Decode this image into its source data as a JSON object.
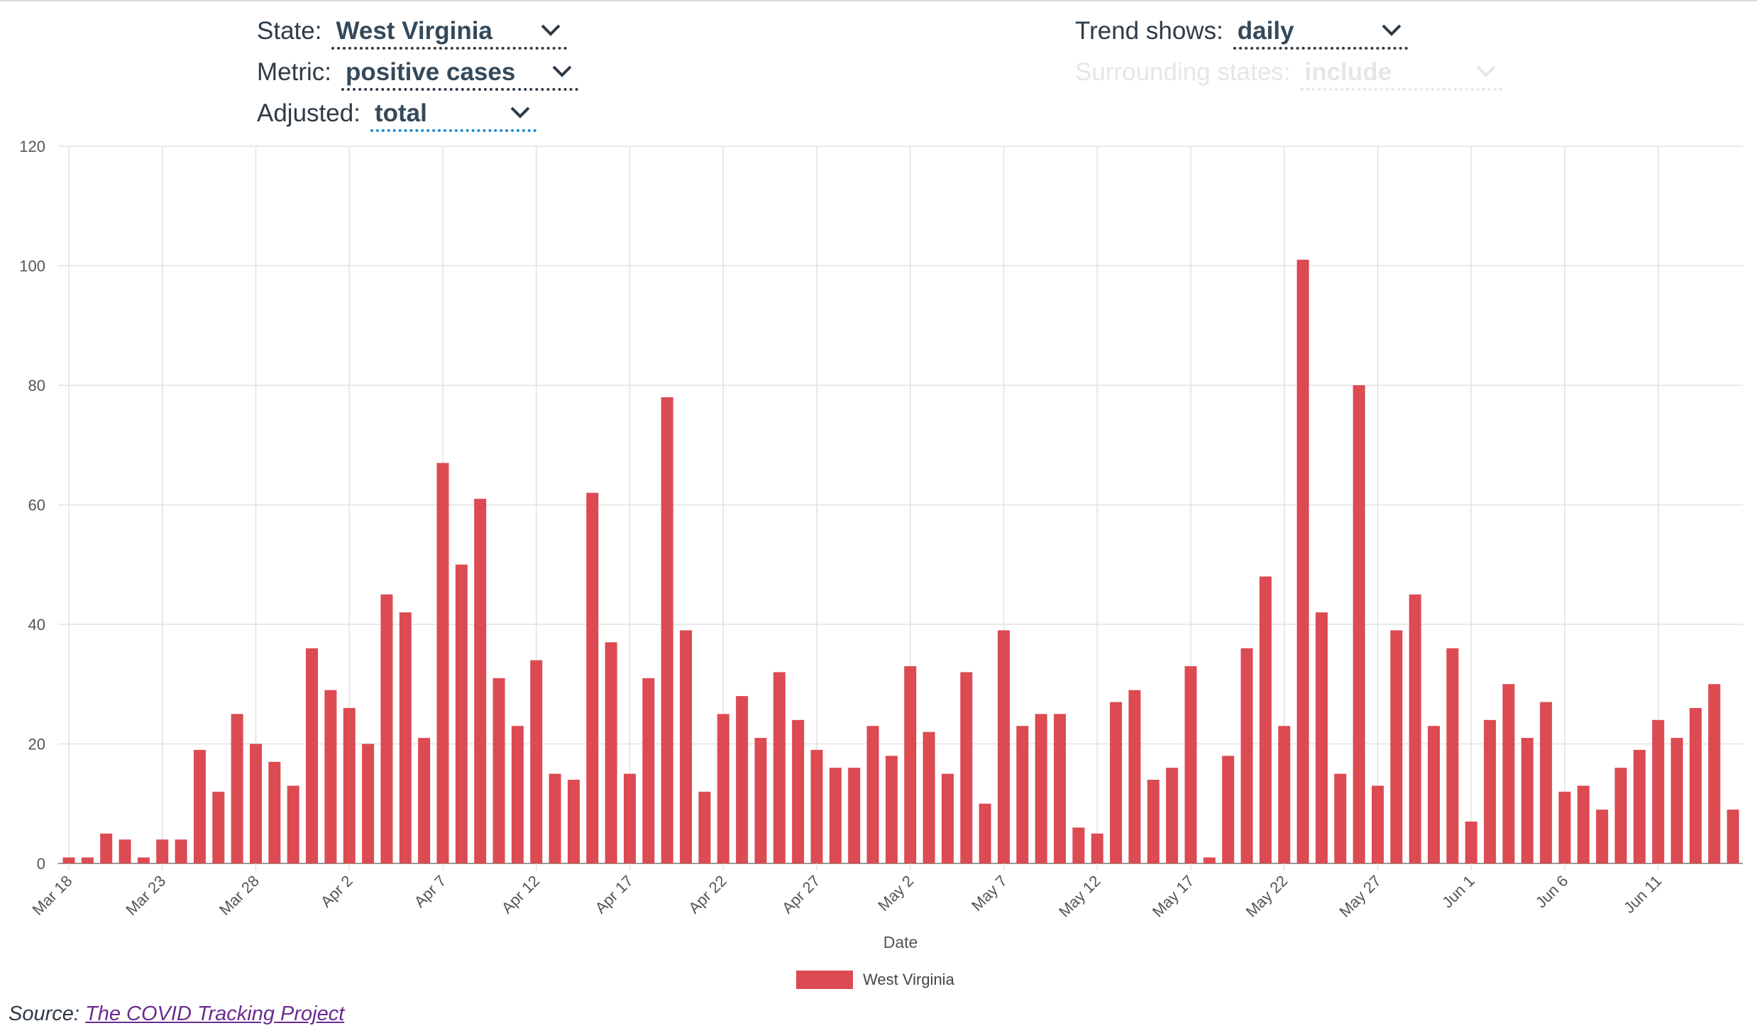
{
  "controls": {
    "state": {
      "label": "State:",
      "value": "West Virginia"
    },
    "metric": {
      "label": "Metric:",
      "value": "positive cases"
    },
    "adjusted": {
      "label": "Adjusted:",
      "value": "total"
    },
    "trend": {
      "label": "Trend shows:",
      "value": "daily"
    },
    "surrounding": {
      "label": "Surrounding states:",
      "value": "include",
      "disabled": true
    }
  },
  "source": {
    "prefix": "Source:",
    "link_text": "The COVID Tracking Project"
  },
  "colors": {
    "bar": "#dc4a52",
    "grid": "#e2e2e2",
    "text": "#2f3b47"
  },
  "chart_data": {
    "type": "bar",
    "xlabel": "Date",
    "ylabel": "",
    "ylim": [
      0,
      120
    ],
    "yticks": [
      0,
      20,
      40,
      60,
      80,
      100,
      120
    ],
    "grid": true,
    "legend_position": "bottom-center",
    "tick_labels": [
      "Mar 18",
      "Mar 23",
      "Mar 28",
      "Apr 2",
      "Apr 7",
      "Apr 12",
      "Apr 17",
      "Apr 22",
      "Apr 27",
      "May 2",
      "May 7",
      "May 12",
      "May 17",
      "May 22",
      "May 27",
      "Jun 1",
      "Jun 6",
      "Jun 11"
    ],
    "categories": [
      "Mar 18",
      "Mar 19",
      "Mar 20",
      "Mar 21",
      "Mar 22",
      "Mar 23",
      "Mar 24",
      "Mar 25",
      "Mar 26",
      "Mar 27",
      "Mar 28",
      "Mar 29",
      "Mar 30",
      "Mar 31",
      "Apr 1",
      "Apr 2",
      "Apr 3",
      "Apr 4",
      "Apr 5",
      "Apr 6",
      "Apr 7",
      "Apr 8",
      "Apr 9",
      "Apr 10",
      "Apr 11",
      "Apr 12",
      "Apr 13",
      "Apr 14",
      "Apr 15",
      "Apr 16",
      "Apr 17",
      "Apr 18",
      "Apr 19",
      "Apr 20",
      "Apr 21",
      "Apr 22",
      "Apr 23",
      "Apr 24",
      "Apr 25",
      "Apr 26",
      "Apr 27",
      "Apr 28",
      "Apr 29",
      "Apr 30",
      "May 1",
      "May 2",
      "May 3",
      "May 4",
      "May 5",
      "May 6",
      "May 7",
      "May 8",
      "May 9",
      "May 10",
      "May 11",
      "May 12",
      "May 13",
      "May 14",
      "May 15",
      "May 16",
      "May 17",
      "May 18",
      "May 19",
      "May 20",
      "May 21",
      "May 22",
      "May 23",
      "May 24",
      "May 25",
      "May 26",
      "May 27",
      "May 28",
      "May 29",
      "May 30",
      "May 31",
      "Jun 1",
      "Jun 2",
      "Jun 3",
      "Jun 4",
      "Jun 5",
      "Jun 6",
      "Jun 7",
      "Jun 8",
      "Jun 9",
      "Jun 10",
      "Jun 11",
      "Jun 12",
      "Jun 13",
      "Jun 14",
      "Jun 15"
    ],
    "series": [
      {
        "name": "West Virginia",
        "values": [
          1,
          1,
          5,
          4,
          1,
          4,
          4,
          19,
          12,
          25,
          20,
          17,
          13,
          36,
          29,
          26,
          20,
          45,
          42,
          21,
          67,
          50,
          61,
          31,
          23,
          34,
          15,
          14,
          62,
          37,
          15,
          31,
          78,
          39,
          12,
          25,
          28,
          21,
          32,
          24,
          19,
          16,
          16,
          23,
          18,
          33,
          22,
          15,
          32,
          10,
          39,
          23,
          25,
          25,
          6,
          5,
          27,
          29,
          14,
          16,
          33,
          1,
          18,
          36,
          48,
          23,
          101,
          42,
          15,
          80,
          13,
          39,
          45,
          23,
          36,
          7,
          24,
          30,
          21,
          27,
          12,
          13,
          9,
          16,
          19,
          24,
          21,
          26,
          30,
          9
        ]
      }
    ]
  }
}
